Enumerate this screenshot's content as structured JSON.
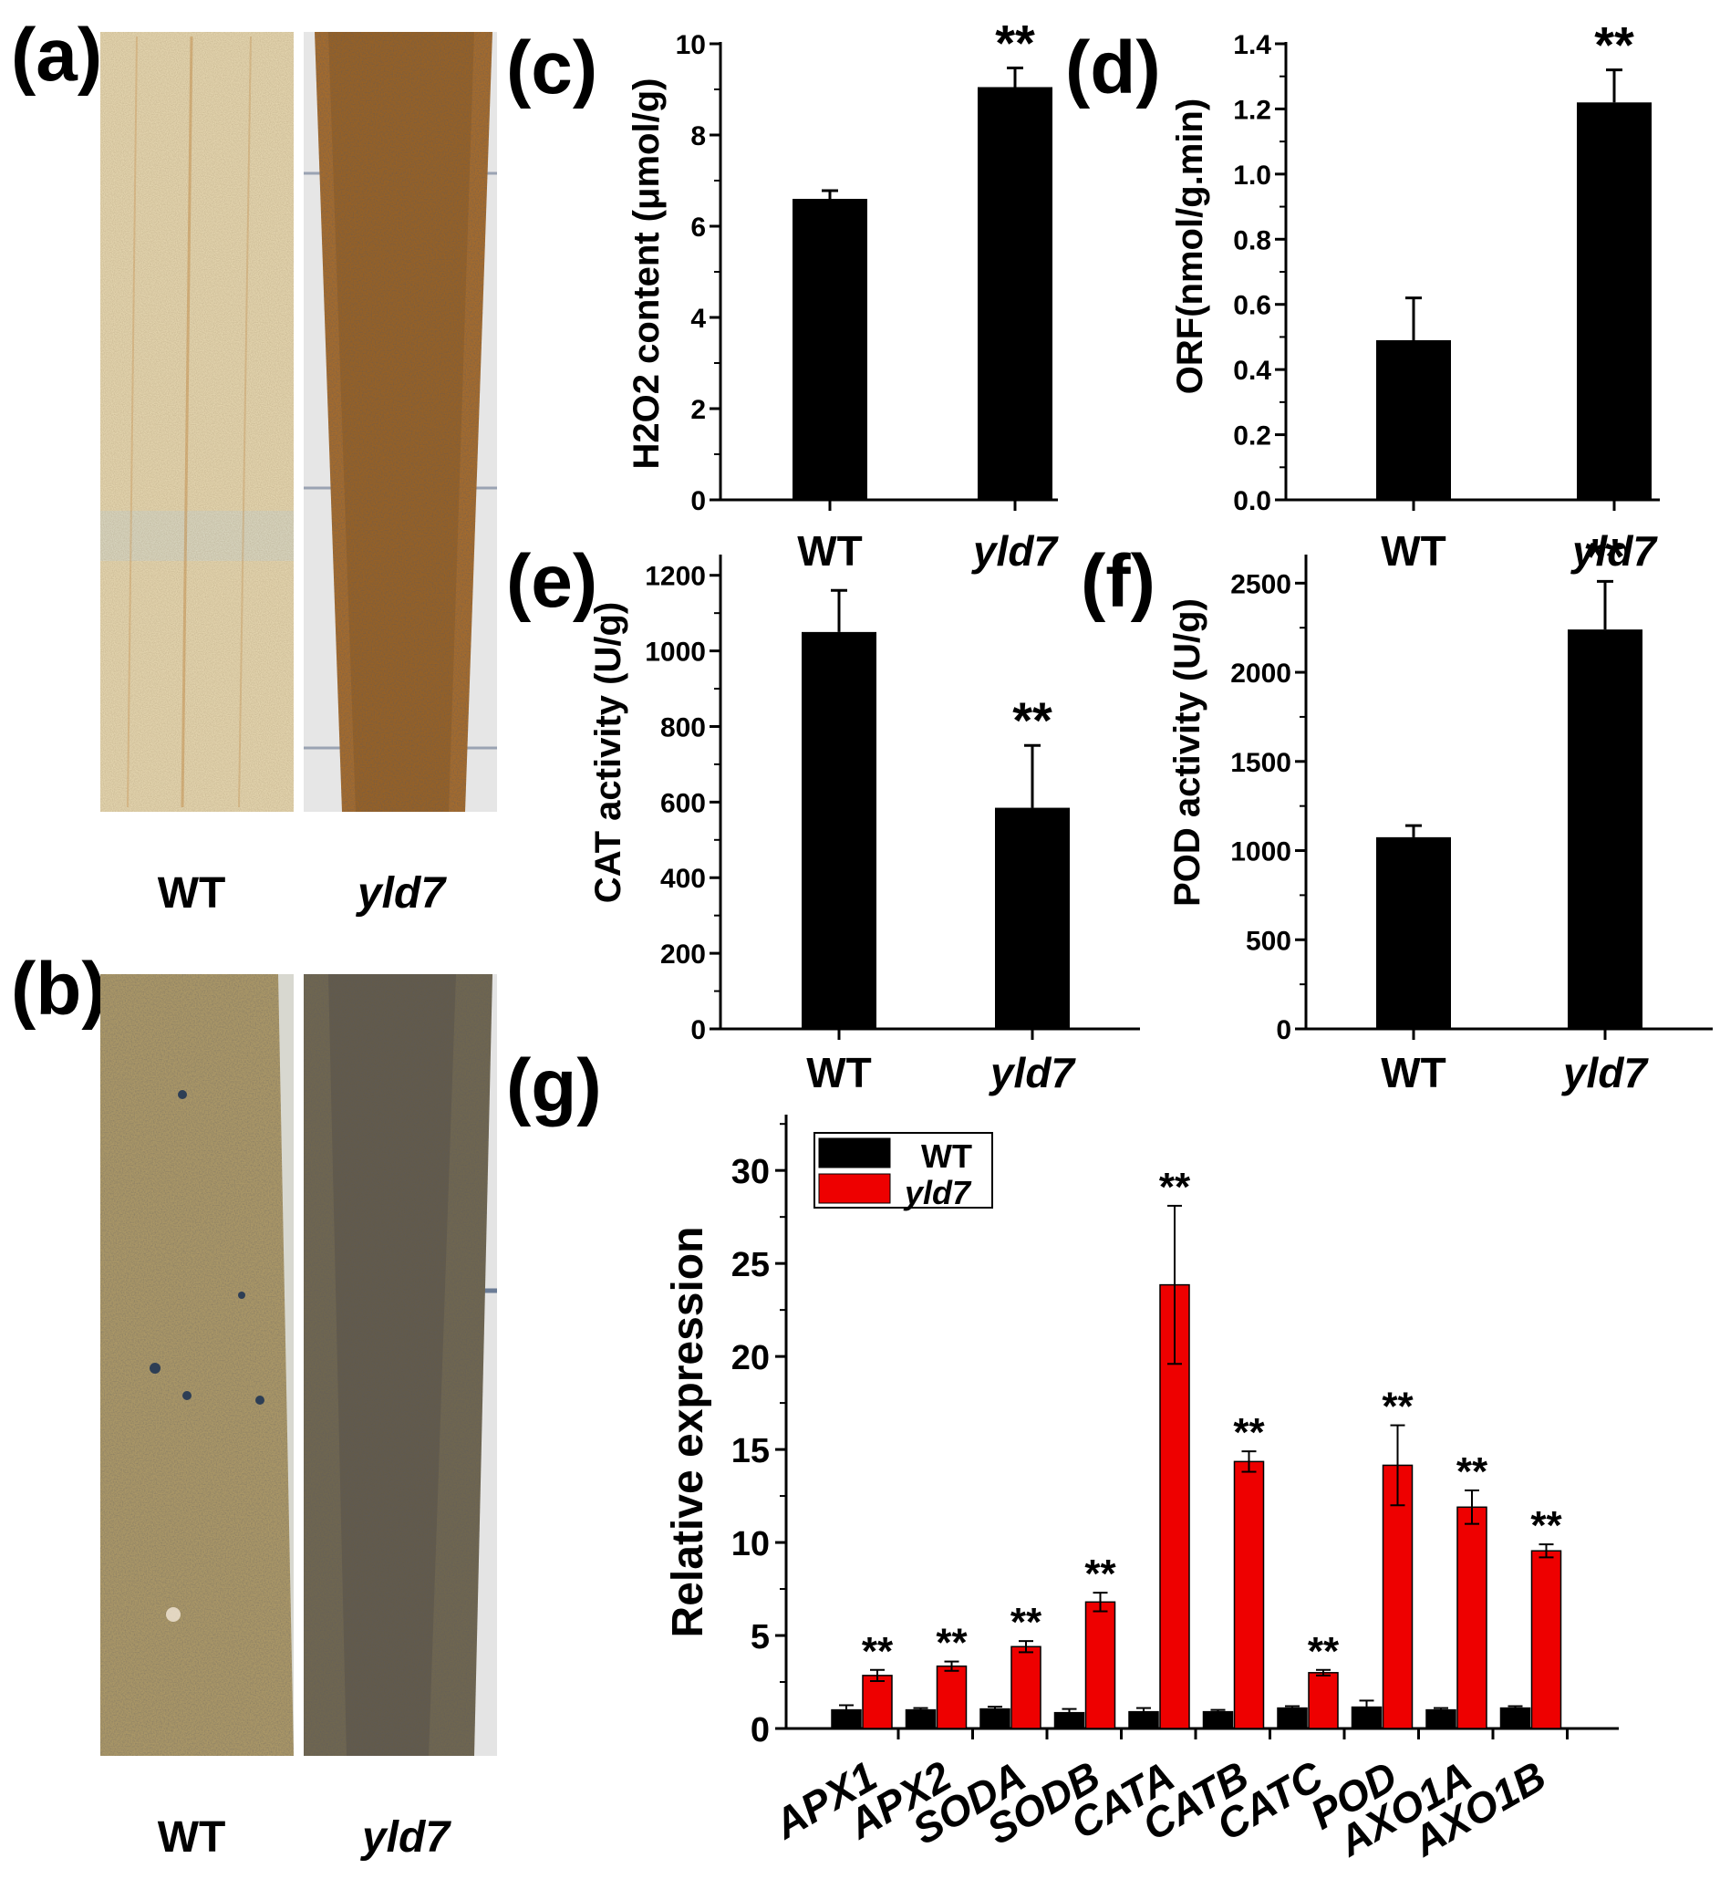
{
  "panels": {
    "a": {
      "letter": "(a)",
      "captions": [
        "WT",
        "yld7"
      ]
    },
    "b": {
      "letter": "(b)",
      "captions": [
        "WT",
        "yld7"
      ]
    }
  },
  "chart_data": [
    {
      "id": "c",
      "letter": "(c)",
      "type": "bar",
      "categories": [
        "WT",
        "yld7"
      ],
      "values": [
        6.6,
        9.05
      ],
      "errors": [
        0.18,
        0.42
      ],
      "ylabel": "H2O2 content (μmol/g)",
      "ylim": [
        0,
        10
      ],
      "yticks": [
        0,
        2,
        4,
        6,
        8,
        10
      ],
      "significance": [
        "",
        "**"
      ]
    },
    {
      "id": "d",
      "letter": "(d)",
      "type": "bar",
      "categories": [
        "WT",
        "yld7"
      ],
      "values": [
        0.49,
        1.22
      ],
      "errors": [
        0.13,
        0.1
      ],
      "ylabel": "ORF(nmol/g.min)",
      "ylim": [
        0,
        1.4
      ],
      "yticks": [
        "0.0",
        "0.2",
        "0.4",
        "0.6",
        "0.8",
        "1.0",
        "1.2",
        "1.4"
      ],
      "significance": [
        "",
        "**"
      ]
    },
    {
      "id": "e",
      "letter": "(e)",
      "type": "bar",
      "categories": [
        "WT",
        "yld7"
      ],
      "values": [
        1050,
        585
      ],
      "errors": [
        110,
        165
      ],
      "ylabel": "CAT activity (U/g)",
      "ylim": [
        0,
        1250
      ],
      "yticks": [
        0,
        200,
        400,
        600,
        800,
        1000,
        1200
      ],
      "significance": [
        "",
        "**"
      ]
    },
    {
      "id": "f",
      "letter": "(f)",
      "type": "bar",
      "categories": [
        "WT",
        "yld7"
      ],
      "values": [
        1075,
        2240
      ],
      "errors": [
        65,
        270
      ],
      "ylabel": "POD activity (U/g)",
      "ylim": [
        0,
        2650
      ],
      "yticks": [
        0,
        500,
        1000,
        1500,
        2000,
        2500
      ],
      "significance": [
        "",
        "**"
      ]
    },
    {
      "id": "g",
      "letter": "(g)",
      "type": "bar",
      "categories": [
        "APX1",
        "APX2",
        "SODA",
        "SODB",
        "CATA",
        "CATB",
        "CATC",
        "POD",
        "AXO1A",
        "AXO1B"
      ],
      "series": [
        {
          "name": "WT",
          "color": "#000000",
          "values": [
            1.0,
            1.0,
            1.05,
            0.85,
            0.9,
            0.9,
            1.1,
            1.15,
            1.0,
            1.1
          ],
          "errors": [
            0.25,
            0.1,
            0.12,
            0.2,
            0.2,
            0.1,
            0.1,
            0.35,
            0.1,
            0.1
          ]
        },
        {
          "name": "yld7",
          "color": "#ee0000",
          "values": [
            2.85,
            3.35,
            4.4,
            6.8,
            23.85,
            14.35,
            3.0,
            14.15,
            11.9,
            9.55
          ],
          "errors": [
            0.3,
            0.25,
            0.3,
            0.5,
            4.25,
            0.55,
            0.15,
            2.15,
            0.9,
            0.35
          ]
        }
      ],
      "ylabel": "Relative expression",
      "ylim": [
        0,
        33
      ],
      "yticks": [
        0,
        5,
        10,
        15,
        20,
        25,
        30
      ],
      "significance": "**",
      "legend_position": "top-left"
    }
  ]
}
